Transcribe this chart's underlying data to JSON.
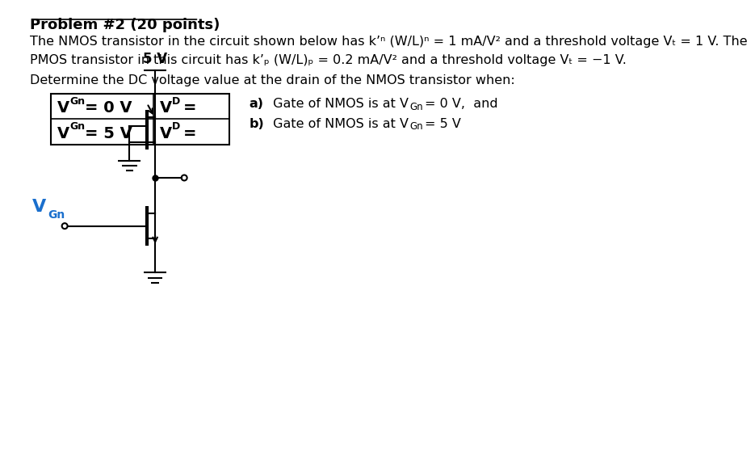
{
  "title": "Problem #2 (20 points)",
  "line1": "The NMOS transistor in the circuit shown below has k’ₙ (W/L)ₙ = 1 mA/V² and a threshold voltage Vₜ = 1 V. The",
  "line2": "PMOS transistor in this circuit has k’ₚ (W/L)ₚ = 0.2 mA/V² and a threshold voltage Vₜ = -1 V.",
  "line3": "Determine the DC voltage value at the drain of the NMOS transistor when:",
  "supply_label": "5 V",
  "vgn_label": "V",
  "vgn_sub": "Gn",
  "bg_color": "#ffffff",
  "text_color": "#000000",
  "circuit_color": "#000000",
  "vgn_color": "#1a6fcd",
  "lw": 1.5,
  "fs_body": 11.5,
  "fs_table": 14,
  "fs_table_sub": 9
}
